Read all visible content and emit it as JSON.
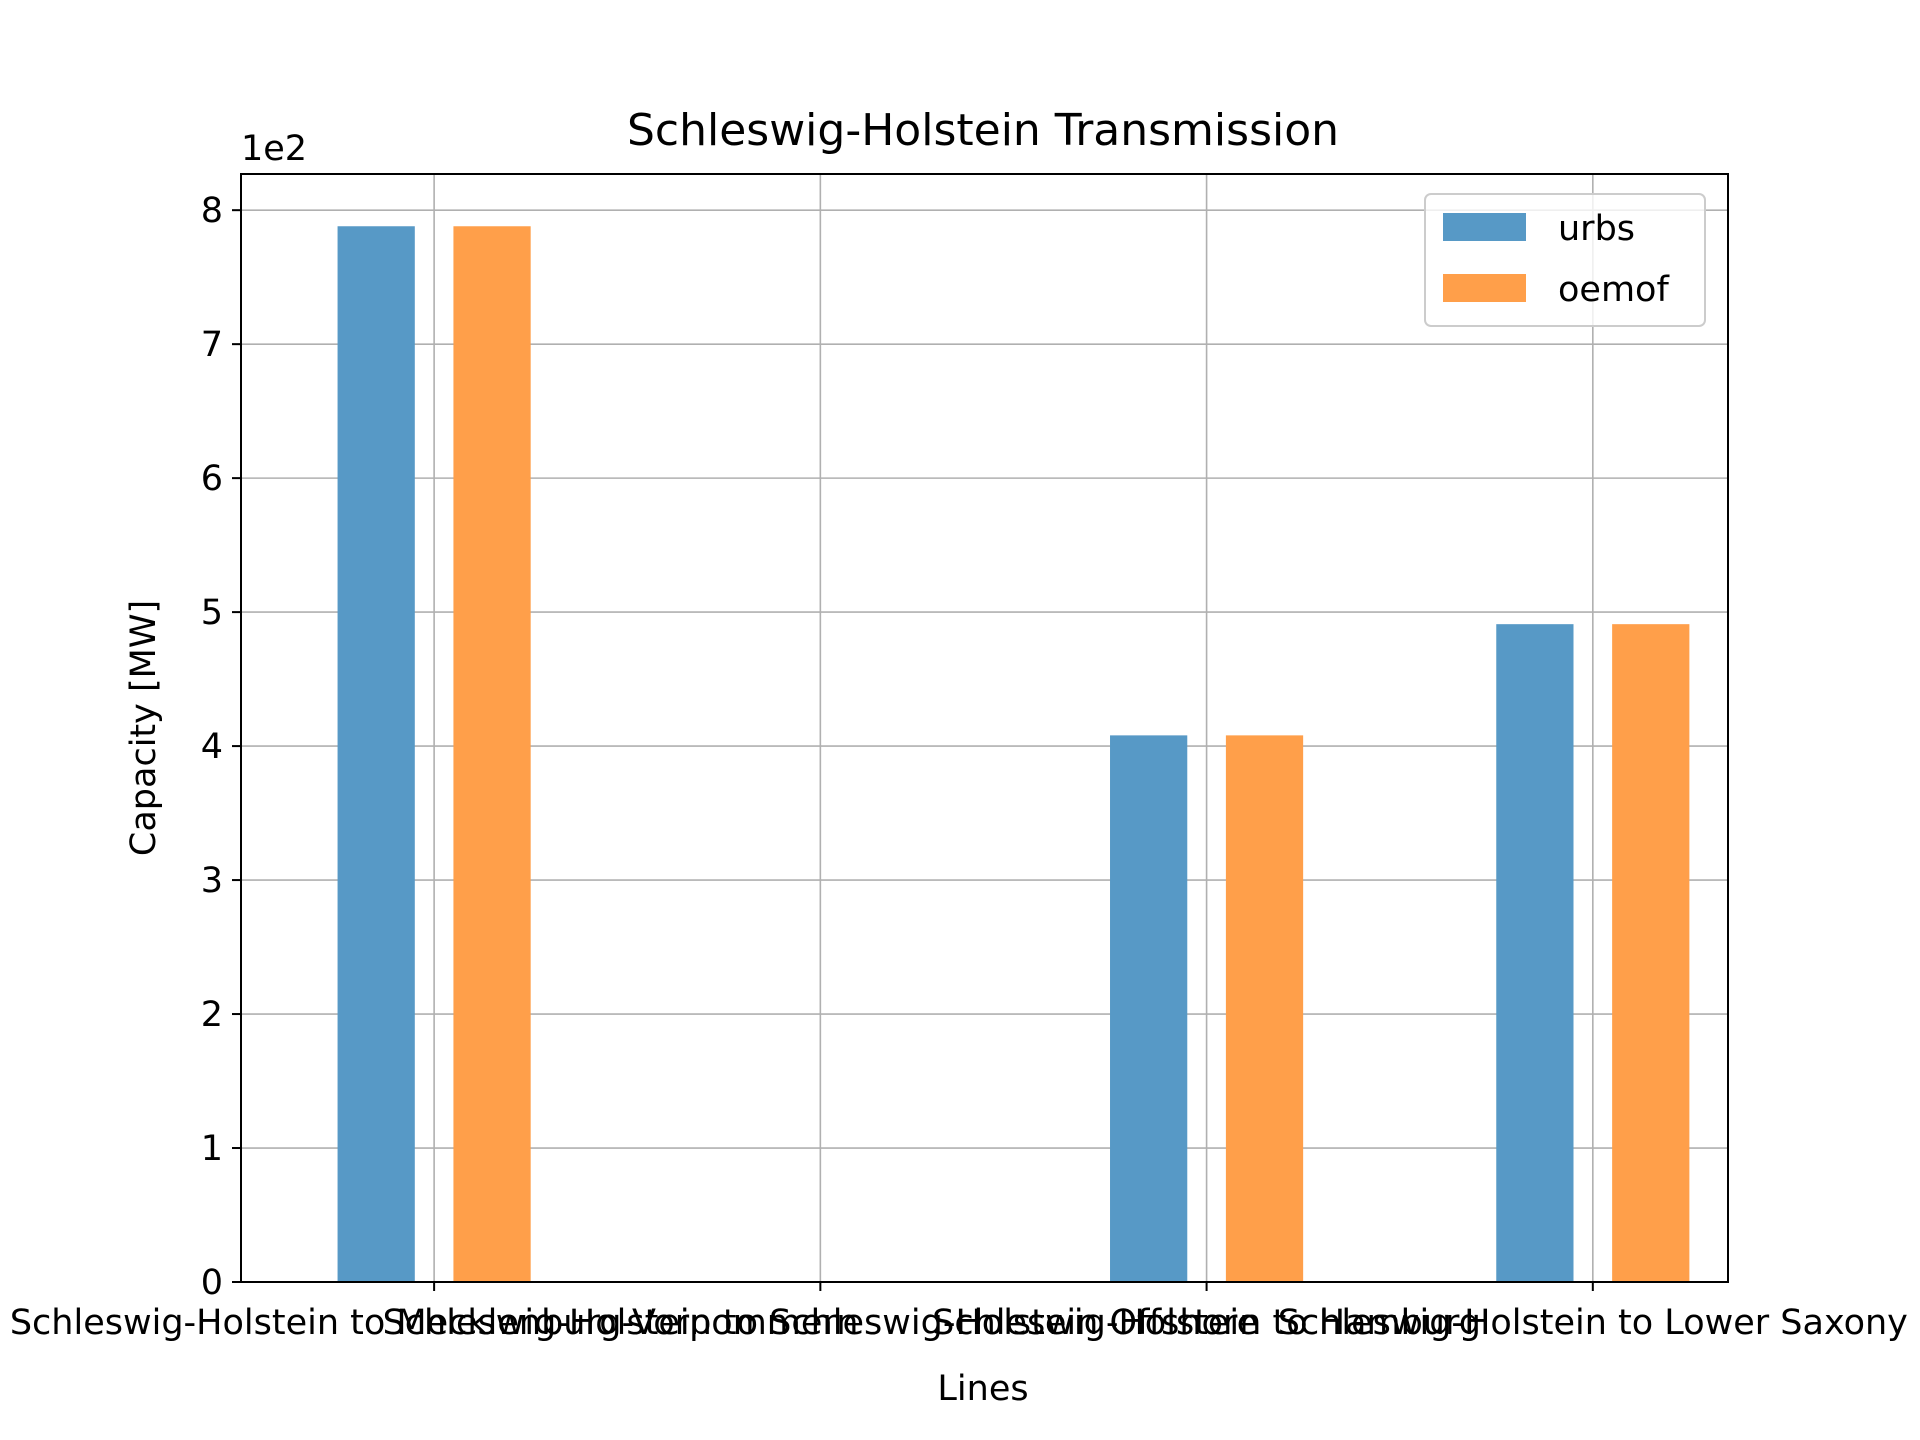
{
  "chart_data": {
    "type": "bar",
    "title": "Schleswig-Holstein Transmission",
    "xlabel": "Lines",
    "ylabel": "Capacity [MW]",
    "y_offset_label": "1e2",
    "y_scale_factor": 100,
    "ylim": [
      0,
      827
    ],
    "y_ticks": [
      0,
      100,
      200,
      300,
      400,
      500,
      600,
      700,
      800
    ],
    "y_tick_labels": [
      "0",
      "1",
      "2",
      "3",
      "4",
      "5",
      "6",
      "7",
      "8"
    ],
    "categories": [
      "Schleswig-Holstein to Mecklenburg-Vorpommern",
      "Schleswig-Holstein to Schleswig-Holstein Offshore",
      "Schleswig-Holstein to Hamburg",
      "Schleswig-Holstein to Lower Saxony"
    ],
    "series": [
      {
        "name": "urbs",
        "color": "#5799c6",
        "values": [
          788,
          0,
          408,
          491
        ]
      },
      {
        "name": "oemof",
        "color": "#ff9f4a",
        "values": [
          788,
          0,
          408,
          491
        ]
      }
    ],
    "grid": true,
    "legend_position": "top-right"
  }
}
